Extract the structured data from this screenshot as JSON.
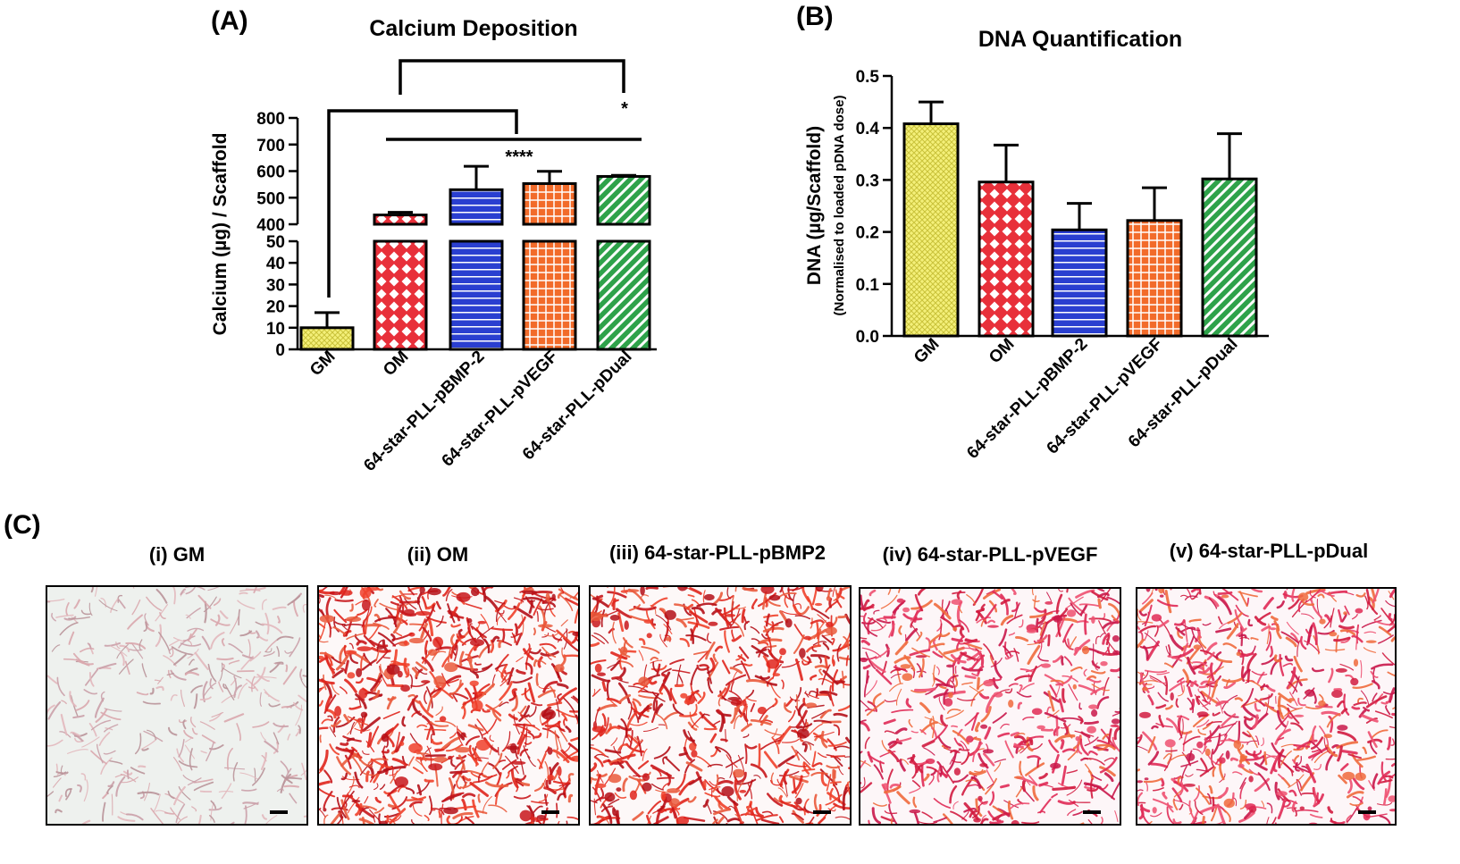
{
  "figure": {
    "panel_a_label": "(A)",
    "panel_b_label": "(B)",
    "panel_c_label": "(C)"
  },
  "chart_data": [
    {
      "type": "bar",
      "title": "Calcium Deposition",
      "xlabel": "",
      "ylabel": "Calcium (µg) / Scaffold",
      "categories": [
        "GM",
        "OM",
        "64-star-PLL-pBMP-2",
        "64-star-PLL-pVEGF",
        "64-star-PLL-pDual"
      ],
      "values": [
        10,
        435,
        530,
        553,
        580
      ],
      "errors": [
        7,
        10,
        88,
        46,
        4
      ],
      "axis_break": true,
      "ylim_lower": [
        0,
        50
      ],
      "ylim_upper": [
        400,
        800
      ],
      "yticks_lower": [
        "0",
        "10",
        "20",
        "30",
        "40",
        "50"
      ],
      "yticks_upper": [
        "400",
        "500",
        "600",
        "700",
        "800"
      ],
      "significance": [
        "****",
        "*"
      ],
      "colors": [
        "#f4f07a",
        "#e8303a",
        "#2a3fd0",
        "#f26b2a",
        "#2ea24a"
      ],
      "patterns": [
        "crosshatch-fine",
        "diamond",
        "horizontal",
        "grid",
        "diagonal"
      ]
    },
    {
      "type": "bar",
      "title": "DNA Quantification",
      "xlabel": "",
      "ylabel": "DNA (µg/Scaffold)",
      "ylabel_sub": "(Normalised to loaded pDNA dose)",
      "categories": [
        "GM",
        "OM",
        "64-star-PLL-pBMP-2",
        "64-star-PLL-pVEGF",
        "64-star-PLL-pDual"
      ],
      "values": [
        0.408,
        0.296,
        0.204,
        0.222,
        0.302
      ],
      "errors": [
        0.042,
        0.071,
        0.051,
        0.063,
        0.087
      ],
      "ylim": [
        0,
        0.5
      ],
      "yticks": [
        "0.0",
        "0.1",
        "0.2",
        "0.3",
        "0.4",
        "0.5"
      ],
      "colors": [
        "#f4f07a",
        "#e8303a",
        "#2a3fd0",
        "#f26b2a",
        "#2ea24a"
      ],
      "patterns": [
        "crosshatch-fine",
        "diamond",
        "horizontal",
        "grid",
        "diagonal"
      ]
    }
  ],
  "images": [
    {
      "title": "(i) GM",
      "density": 0.15,
      "tone": "pale"
    },
    {
      "title": "(ii) OM",
      "density": 0.85,
      "tone": "red"
    },
    {
      "title": "(iii) 64-star-PLL-pBMP2",
      "density": 0.7,
      "tone": "red"
    },
    {
      "title": "(iv) 64-star-PLL-pVEGF",
      "density": 0.55,
      "tone": "pink"
    },
    {
      "title": "(v) 64-star-PLL-pDual",
      "density": 0.62,
      "tone": "pink"
    }
  ]
}
